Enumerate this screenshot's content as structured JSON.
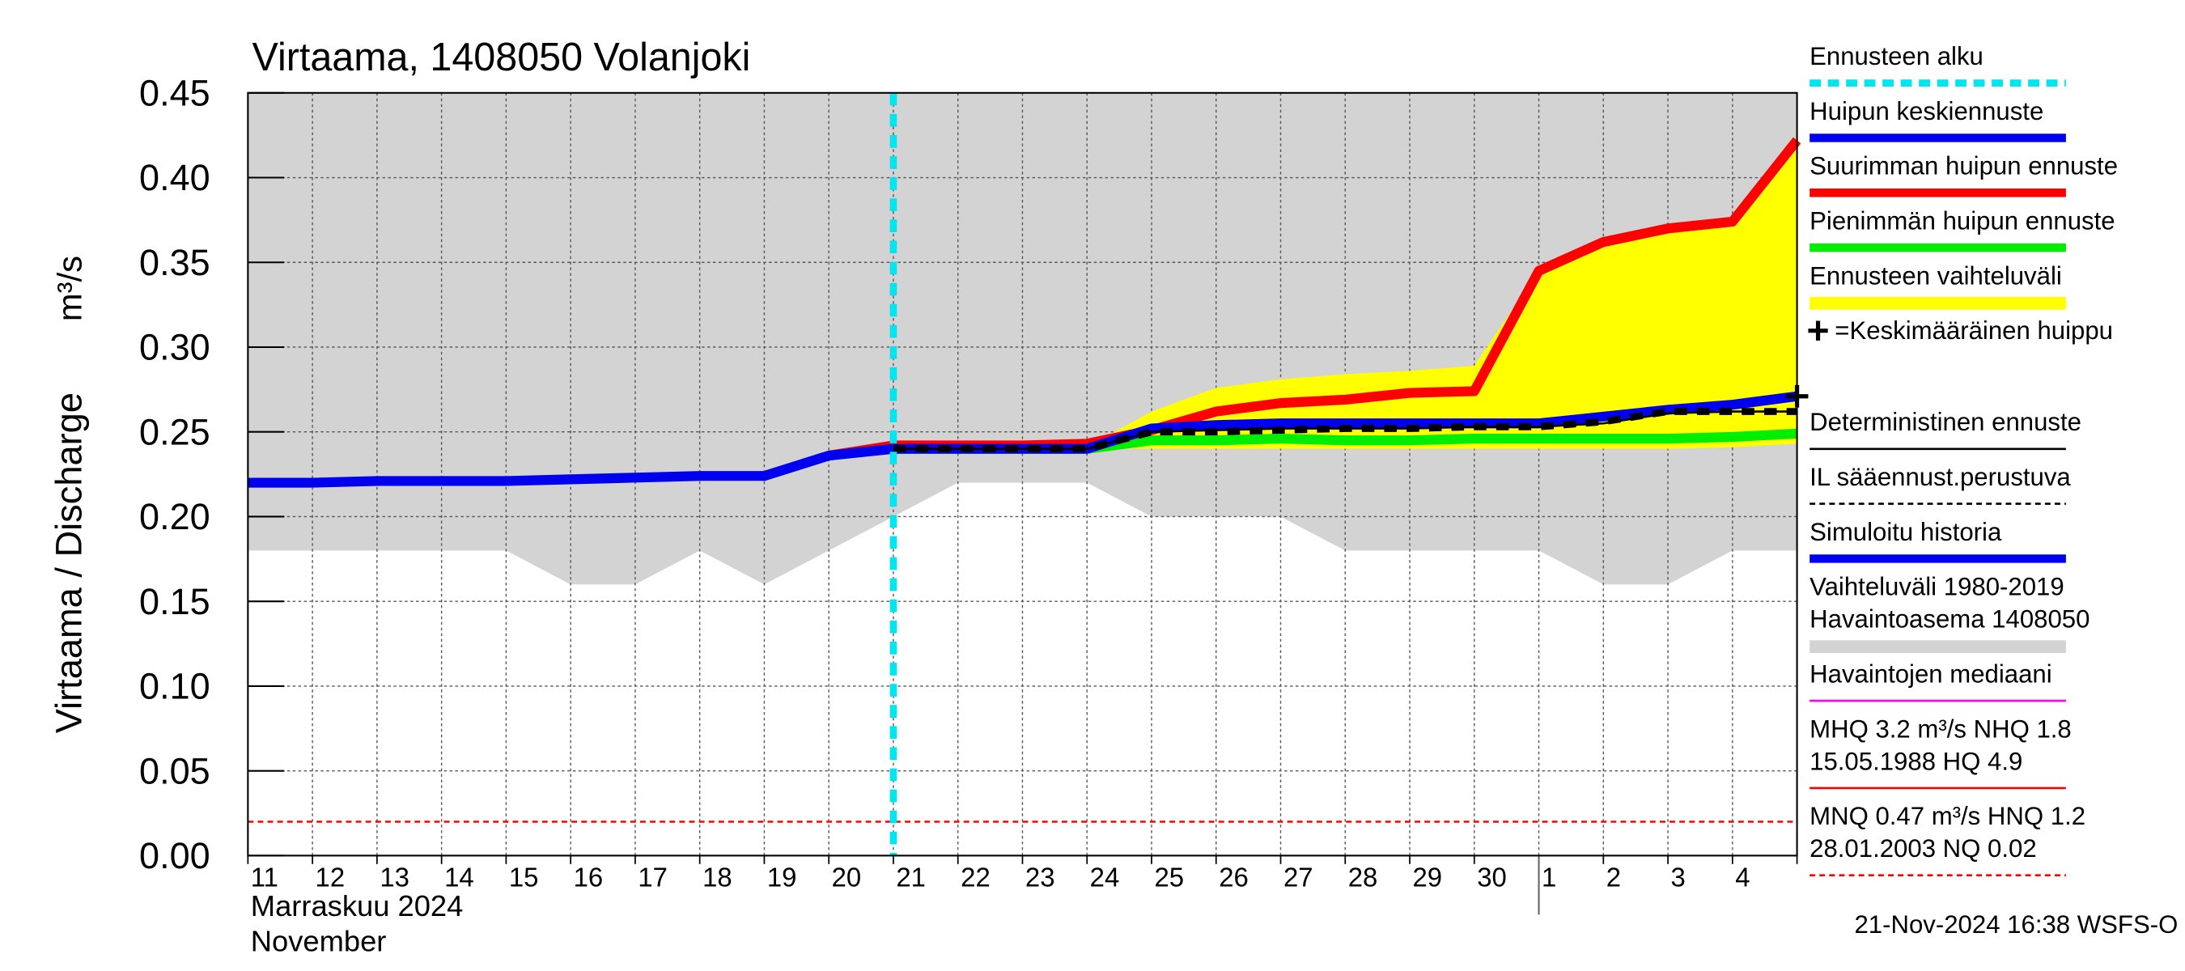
{
  "chart_data": {
    "type": "line",
    "title": "Virtaama, 1408050 Volanjoki",
    "ylabel": "Virtaama / Discharge",
    "yunit": "m³/s",
    "xlabel_fi": "Marraskuu 2024",
    "xlabel_en": "November",
    "timestamp": "21-Nov-2024 16:38 WSFS-O",
    "grid": true,
    "categories": [
      "11",
      "12",
      "13",
      "14",
      "15",
      "16",
      "17",
      "18",
      "19",
      "20",
      "21",
      "22",
      "23",
      "24",
      "25",
      "26",
      "27",
      "28",
      "29",
      "30",
      "1",
      "2",
      "3",
      "4",
      null
    ],
    "month_break": 20,
    "ylim": [
      0,
      0.45
    ],
    "yticks": [
      {
        "value": 0,
        "label": "0.00"
      },
      0.05,
      {
        "value": 0.1,
        "label": "0.10"
      },
      0.15,
      {
        "value": 0.2,
        "label": "0.20"
      },
      0.25,
      {
        "value": 0.3,
        "label": "0.30"
      },
      0.35,
      {
        "value": 0.4,
        "label": "0.40"
      },
      0.45
    ],
    "forecast_start": {
      "name": "Ennusteen alku",
      "color": "#00e5ee",
      "style": "dashed",
      "x": 10
    },
    "bands": [
      {
        "name": [
          "Vaihteluväli 1980-2019",
          " Havaintoasema 1408050"
        ],
        "color": "#d3d3d3",
        "style": "band",
        "upper": [
          0.45,
          0.45,
          0.45,
          0.45,
          0.45,
          0.45,
          0.45,
          0.45,
          0.45,
          0.45,
          0.45,
          0.45,
          0.45,
          0.45,
          0.45,
          0.45,
          0.45,
          0.45,
          0.45,
          0.45,
          0.45,
          0.45,
          0.45,
          0.45,
          0.45
        ],
        "lower": [
          0.18,
          0.18,
          0.18,
          0.18,
          0.18,
          0.16,
          0.16,
          0.18,
          0.16,
          0.18,
          0.2,
          0.22,
          0.22,
          0.22,
          0.2,
          0.2,
          0.2,
          0.18,
          0.18,
          0.18,
          0.18,
          0.16,
          0.16,
          0.18,
          0.18
        ]
      },
      {
        "name": "Ennusteen vaihteluväli",
        "color": "#ffff00",
        "style": "band",
        "upper": [
          null,
          null,
          null,
          null,
          null,
          null,
          null,
          null,
          null,
          null,
          0.24,
          0.24,
          0.24,
          0.241,
          0.262,
          0.276,
          0.281,
          0.284,
          0.286,
          0.289,
          0.345,
          0.362,
          0.37,
          0.374,
          0.422
        ],
        "lower": [
          null,
          null,
          null,
          null,
          null,
          null,
          null,
          null,
          null,
          null,
          0.24,
          0.24,
          0.24,
          0.24,
          0.24,
          0.24,
          0.24,
          0.24,
          0.24,
          0.24,
          0.24,
          0.24,
          0.24,
          0.241,
          0.243
        ]
      }
    ],
    "series": [
      {
        "name": "Pienimmän huipun ennuste",
        "color": "#00ee00",
        "style": "thick",
        "values": [
          null,
          null,
          null,
          null,
          null,
          null,
          null,
          null,
          null,
          null,
          0.24,
          0.24,
          0.24,
          0.24,
          0.245,
          0.245,
          0.246,
          0.245,
          0.245,
          0.246,
          0.246,
          0.246,
          0.246,
          0.247,
          0.249
        ]
      },
      {
        "name": "Suurimman huipun ennuste",
        "color": "#ff0000",
        "style": "thick",
        "values": [
          null,
          null,
          null,
          null,
          null,
          null,
          null,
          null,
          null,
          0.236,
          0.242,
          0.242,
          0.242,
          0.243,
          0.251,
          0.262,
          0.267,
          0.269,
          0.273,
          0.274,
          0.345,
          0.362,
          0.37,
          0.374,
          0.422
        ]
      },
      {
        "name": "Huipun keskiennuste",
        "color": "#0000ee",
        "style": "thick",
        "values": [
          null,
          null,
          null,
          null,
          null,
          null,
          null,
          null,
          null,
          null,
          0.24,
          0.24,
          0.24,
          0.24,
          0.252,
          0.254,
          0.255,
          0.255,
          0.255,
          0.255,
          0.255,
          0.259,
          0.263,
          0.266,
          0.271
        ]
      },
      {
        "name": "Deterministinen ennuste",
        "color": "#000000",
        "style": "thin",
        "values": [
          null,
          null,
          null,
          null,
          null,
          null,
          null,
          null,
          null,
          null,
          0.24,
          0.24,
          0.24,
          0.24,
          0.25,
          0.251,
          0.252,
          0.252,
          0.252,
          0.253,
          0.253,
          0.255,
          0.261,
          0.262,
          0.262
        ]
      },
      {
        "name": "IL sääennust.perustuva",
        "color": "#000000",
        "style": "dashed",
        "values": [
          null,
          null,
          null,
          null,
          null,
          null,
          null,
          null,
          null,
          null,
          0.24,
          0.24,
          0.24,
          0.24,
          0.25,
          0.25,
          0.251,
          0.252,
          0.252,
          0.253,
          0.253,
          0.256,
          0.262,
          0.262,
          0.262
        ]
      },
      {
        "name": "Simuloitu historia",
        "color": "#0000ee",
        "style": "thick",
        "values": [
          0.22,
          0.22,
          0.221,
          0.221,
          0.221,
          0.222,
          0.223,
          0.224,
          0.224,
          0.236,
          0.24,
          null,
          null,
          null,
          null,
          null,
          null,
          null,
          null,
          null,
          null,
          null,
          null,
          null,
          null
        ]
      }
    ],
    "mean_peak": {
      "name": "=Keskimääräinen huippu",
      "color": "#000000",
      "style": "cross",
      "x": 24,
      "value": 0.271
    },
    "median": {
      "name": "Havaintojen mediaani",
      "color": "#ff00ff",
      "style": "thin"
    },
    "hq_note": {
      "name": [
        "MHQ  3.2 m³/s NHQ  1.8",
        "15.05.1988 HQ  4.9"
      ],
      "color": "#ff0000",
      "style": "thin"
    },
    "nq_note": {
      "name": [
        "MNQ 0.47 m³/s HNQ  1.2",
        "28.01.2003 NQ 0.02"
      ],
      "color": "#ff0000",
      "style": "dotted",
      "value": 0.02
    }
  }
}
